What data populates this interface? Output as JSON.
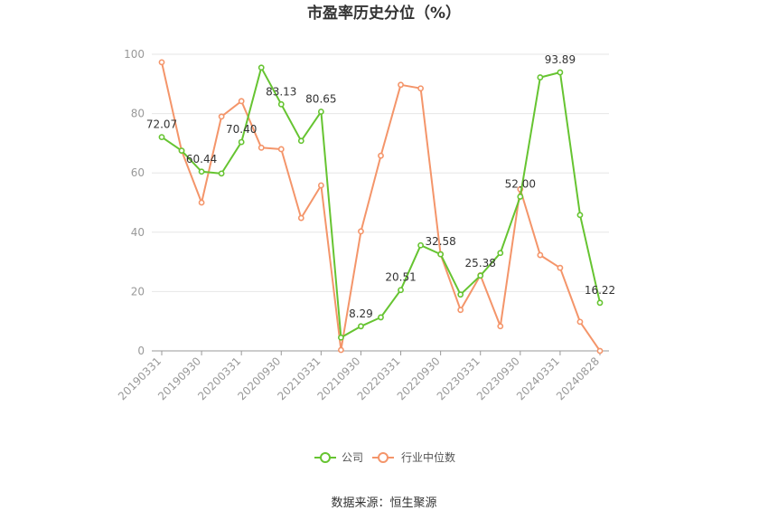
{
  "chart_data": {
    "type": "line",
    "title": "市盈率历史分位（%）",
    "source": "数据来源：恒生聚源",
    "ylim": [
      0,
      100
    ],
    "yticks": [
      "0",
      "20",
      "40",
      "60",
      "80",
      "100"
    ],
    "grid": true,
    "legend_position": "bottom",
    "x_tick_labels": [
      "20190331",
      "20190930",
      "20200331",
      "20200930",
      "20210331",
      "20210930",
      "20220331",
      "20220930",
      "20230331",
      "20230930",
      "20240331",
      "20240828"
    ],
    "x": [
      "20190331",
      "20190630",
      "20190930",
      "20191231",
      "20200331",
      "20200630",
      "20200930",
      "20201231",
      "20210331",
      "20210630",
      "20210930",
      "20211231",
      "20220331",
      "20220630",
      "20220930",
      "20221231",
      "20230331",
      "20230630",
      "20230930",
      "20231231",
      "20240331",
      "20240630",
      "20240828"
    ],
    "series": [
      {
        "name": "公司",
        "color": "#66c431",
        "values": [
          72.07,
          67.5,
          60.44,
          59.8,
          70.4,
          95.5,
          83.13,
          70.8,
          80.65,
          4.5,
          8.29,
          11.3,
          20.51,
          35.6,
          32.58,
          19.0,
          25.38,
          33.0,
          52.0,
          92.2,
          93.89,
          45.8,
          16.22
        ],
        "labels": {
          "0": "72.07",
          "2": "60.44",
          "4": "70.40",
          "6": "83.13",
          "8": "80.65",
          "10": "8.29",
          "12": "20.51",
          "14": "32.58",
          "16": "25.38",
          "18": "52.00",
          "20": "93.89",
          "22": "16.22"
        }
      },
      {
        "name": "行业中位数",
        "color": "#f4956a",
        "values": [
          97.3,
          67.5,
          50.0,
          79.0,
          84.2,
          68.5,
          68.0,
          44.8,
          55.8,
          0.3,
          40.3,
          65.8,
          89.7,
          88.5,
          32.6,
          13.8,
          25.5,
          8.3,
          54.5,
          32.3,
          28.0,
          9.8,
          0.0
        ]
      }
    ]
  }
}
